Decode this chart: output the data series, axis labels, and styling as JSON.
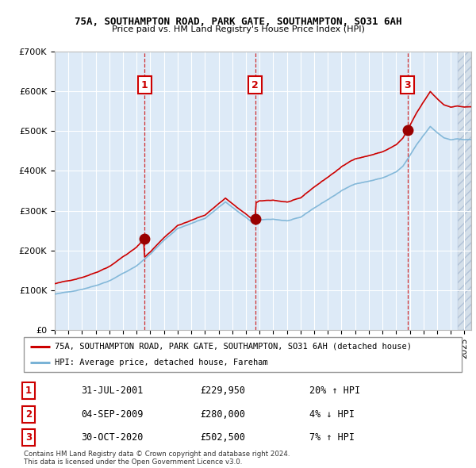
{
  "title": "75A, SOUTHAMPTON ROAD, PARK GATE, SOUTHAMPTON, SO31 6AH",
  "subtitle": "Price paid vs. HM Land Registry's House Price Index (HPI)",
  "ylim": [
    0,
    700000
  ],
  "yticks": [
    0,
    100000,
    200000,
    300000,
    400000,
    500000,
    600000,
    700000
  ],
  "ytick_labels": [
    "£0",
    "£100K",
    "£200K",
    "£300K",
    "£400K",
    "£500K",
    "£600K",
    "£700K"
  ],
  "xlim_start": 1995.0,
  "xlim_end": 2025.5,
  "sale_dates": [
    2001.58,
    2009.67,
    2020.83
  ],
  "sale_prices": [
    229950,
    280000,
    502500
  ],
  "sale_labels": [
    "1",
    "2",
    "3"
  ],
  "hpi_line_color": "#7ab3d6",
  "property_line_color": "#cc0000",
  "sale_marker_color": "#990000",
  "bg_color": "#e8f0f8",
  "grid_color": "#ffffff",
  "legend_property": "75A, SOUTHAMPTON ROAD, PARK GATE, SOUTHAMPTON, SO31 6AH (detached house)",
  "legend_hpi": "HPI: Average price, detached house, Fareham",
  "table_rows": [
    [
      "1",
      "31-JUL-2001",
      "£229,950",
      "20% ↑ HPI"
    ],
    [
      "2",
      "04-SEP-2009",
      "£280,000",
      "4% ↓ HPI"
    ],
    [
      "3",
      "30-OCT-2020",
      "£502,500",
      "7% ↑ HPI"
    ]
  ],
  "footnote1": "Contains HM Land Registry data © Crown copyright and database right 2024.",
  "footnote2": "This data is licensed under the Open Government Licence v3.0.",
  "hatched_region_start": 2024.5,
  "band_color": "#ddeaf7"
}
